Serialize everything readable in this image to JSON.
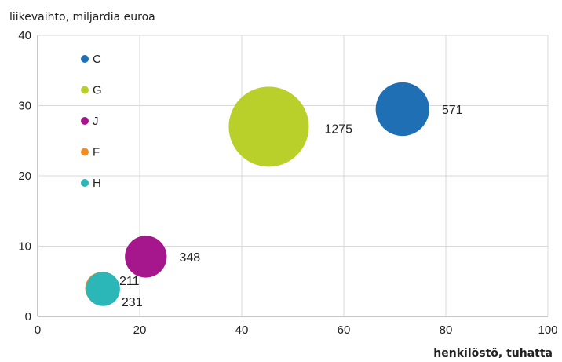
{
  "chart_data": {
    "type": "bubble",
    "ylabel": "liikevaihto, miljardia euroa",
    "xlabel": "henkilöstö, tuhatta",
    "xlim": [
      0,
      100
    ],
    "ylim": [
      0,
      40
    ],
    "xticks": [
      "0",
      "20",
      "40",
      "60",
      "80",
      "100"
    ],
    "yticks": [
      "0",
      "10",
      "20",
      "30",
      "40"
    ],
    "grid": true,
    "legend_position": "top-left",
    "series": [
      {
        "name": "C",
        "x": 71.5,
        "y": 29.5,
        "size": 571,
        "label": "571",
        "color": "#1f6fb4"
      },
      {
        "name": "G",
        "x": 45.3,
        "y": 27.0,
        "size": 1275,
        "label": "1275",
        "color": "#b9d02a"
      },
      {
        "name": "J",
        "x": 21.2,
        "y": 8.5,
        "size": 348,
        "label": "348",
        "color": "#a6168c"
      },
      {
        "name": "F",
        "x": 12.5,
        "y": 4.0,
        "size": 211,
        "label": "211",
        "color": "#f28c1c"
      },
      {
        "name": "H",
        "x": 12.8,
        "y": 3.9,
        "size": 231,
        "label": "231",
        "color": "#2bb6b8"
      }
    ]
  }
}
